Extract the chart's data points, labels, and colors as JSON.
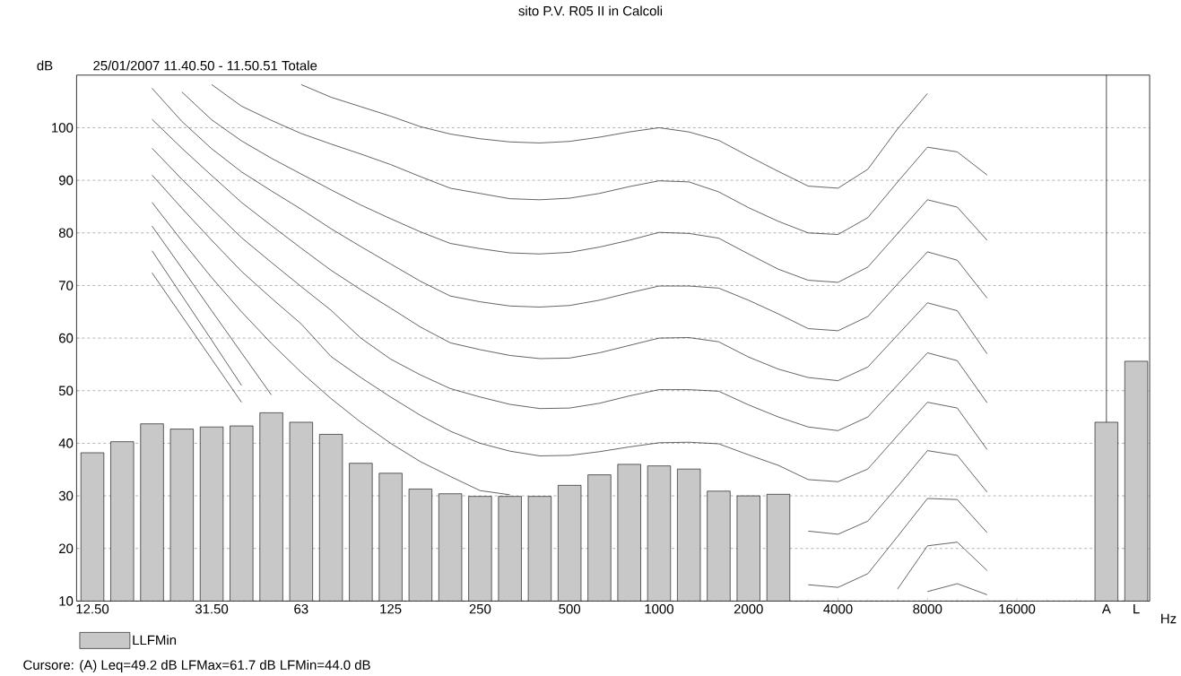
{
  "chart_data": {
    "type": "bar",
    "title": "sito P.V. R05 II in Calcoli",
    "subtitle": "25/01/2007 11.40.50 - 11.50.51  Totale",
    "ylabel": "dB",
    "xlabel": "Hz",
    "annotations": [
      "Cursore: (A)  Leq=49.2 dB  LFMax=61.7 dB  LFMin=44.0 dB"
    ],
    "categories": [
      "12.50",
      null,
      null,
      null,
      "31.50",
      null,
      null,
      "63",
      null,
      null,
      "125",
      null,
      null,
      "250",
      null,
      null,
      "500",
      null,
      null,
      "1000",
      null,
      null,
      "2000",
      null,
      null,
      "4000",
      null,
      null,
      "8000",
      null,
      null,
      "16000",
      null,
      null,
      "A",
      "L"
    ],
    "ylim": [
      10,
      110
    ],
    "yticks": [
      10,
      20,
      30,
      40,
      50,
      60,
      70,
      80,
      90,
      100
    ],
    "grid": "y",
    "legend": "bottom left",
    "marker": "none",
    "ref_lines": [
      {
        "axis": "x",
        "value": "A",
        "color": "#000000"
      }
    ],
    "series": [
      {
        "name": "LLFMin",
        "color": "#c8c8c8",
        "values": [
          38.2,
          40.3,
          43.7,
          42.7,
          43.1,
          43.3,
          45.8,
          44.0,
          41.7,
          36.2,
          34.3,
          31.3,
          30.4,
          29.9,
          29.9,
          29.9,
          32.0,
          34.0,
          36.0,
          35.7,
          35.1,
          30.9,
          30.0,
          30.3,
          null,
          null,
          null,
          null,
          null,
          null,
          null,
          null,
          null,
          null,
          44.0,
          55.6
        ]
      },
      {
        "type": "line",
        "color": "#222222",
        "values": [
          null,
          null,
          null,
          null,
          null,
          null,
          null,
          108.2,
          105.8,
          104.0,
          102.2,
          100.2,
          98.8,
          97.9,
          97.3,
          97.1,
          97.4,
          98.2,
          99.2,
          100.0,
          99.2,
          97.6,
          94.6,
          91.7,
          88.9,
          88.5,
          92.1,
          99.8,
          106.5,
          null,
          null,
          null,
          null,
          null,
          null,
          null
        ]
      },
      {
        "type": "line",
        "color": "#222222",
        "values": [
          null,
          null,
          null,
          null,
          108.2,
          104.1,
          101.4,
          98.9,
          96.9,
          95.0,
          93.0,
          90.7,
          88.5,
          87.5,
          86.5,
          86.3,
          86.6,
          87.5,
          88.8,
          89.9,
          89.7,
          87.8,
          84.8,
          82.2,
          80.0,
          79.7,
          82.9,
          89.7,
          96.3,
          95.4,
          91.0,
          null,
          null,
          null,
          null,
          null
        ]
      },
      {
        "type": "line",
        "color": "#222222",
        "values": [
          null,
          null,
          null,
          106.8,
          101.5,
          97.5,
          94.2,
          91.2,
          88.2,
          85.3,
          82.7,
          80.2,
          78.0,
          77.0,
          76.2,
          76.0,
          76.3,
          77.3,
          78.6,
          80.1,
          79.9,
          79.0,
          76.0,
          73.1,
          71.0,
          70.6,
          73.5,
          79.9,
          86.3,
          84.9,
          78.6,
          null,
          null,
          null,
          null,
          null
        ]
      },
      {
        "type": "line",
        "color": "#222222",
        "values": [
          null,
          null,
          107.5,
          101.2,
          96.0,
          91.6,
          88.0,
          84.5,
          80.8,
          77.4,
          74.1,
          70.8,
          68.0,
          66.9,
          66.1,
          65.9,
          66.2,
          67.2,
          68.6,
          69.9,
          69.9,
          69.5,
          67.2,
          64.6,
          61.8,
          61.4,
          64.1,
          70.3,
          76.4,
          74.8,
          67.6,
          null,
          null,
          null,
          null,
          null
        ]
      },
      {
        "type": "line",
        "color": "#222222",
        "values": [
          null,
          null,
          101.6,
          96.1,
          90.9,
          85.8,
          81.4,
          77.1,
          72.9,
          69.2,
          65.7,
          62.1,
          59.1,
          57.8,
          56.7,
          56.1,
          56.2,
          57.2,
          58.6,
          60.0,
          60.1,
          59.3,
          56.4,
          54.1,
          52.5,
          51.9,
          54.5,
          60.6,
          66.7,
          65.2,
          57.0,
          null,
          null,
          null,
          null,
          null
        ]
      },
      {
        "type": "line",
        "color": "#222222",
        "values": [
          null,
          null,
          96.1,
          90.2,
          84.6,
          79.1,
          74.4,
          69.8,
          65.3,
          60.0,
          56.0,
          53.0,
          50.4,
          48.8,
          47.4,
          46.6,
          46.7,
          47.6,
          49.0,
          50.2,
          50.2,
          49.9,
          47.3,
          45.0,
          43.1,
          42.4,
          45.0,
          51.1,
          57.2,
          55.7,
          47.7,
          null,
          null,
          null,
          null,
          null
        ]
      },
      {
        "type": "line",
        "color": "#222222",
        "values": [
          null,
          null,
          91.0,
          84.7,
          78.6,
          72.7,
          67.6,
          62.7,
          56.5,
          52.5,
          48.8,
          45.3,
          42.3,
          40.0,
          38.5,
          37.6,
          37.7,
          38.4,
          39.3,
          40.1,
          40.2,
          39.9,
          37.8,
          35.8,
          33.1,
          32.7,
          35.1,
          41.5,
          47.8,
          46.7,
          38.8,
          null,
          null,
          null,
          null,
          null
        ]
      },
      {
        "type": "line",
        "color": "#222222",
        "values": [
          null,
          null,
          85.8,
          78.5,
          71.5,
          65.0,
          59.0,
          53.5,
          48.5,
          44.0,
          40.0,
          36.5,
          33.7,
          31.0,
          30.2,
          null,
          null,
          null,
          null,
          null,
          null,
          null,
          null,
          null,
          23.3,
          22.7,
          25.2,
          31.8,
          38.6,
          37.7,
          30.7,
          null,
          null,
          null,
          null,
          null
        ]
      },
      {
        "type": "line",
        "color": "#222222",
        "values": [
          null,
          null,
          81.3,
          73.3,
          65.2,
          57.2,
          49.2,
          null,
          null,
          null,
          null,
          null,
          null,
          null,
          null,
          null,
          null,
          null,
          null,
          null,
          null,
          null,
          null,
          null,
          13.1,
          12.6,
          15.2,
          22.3,
          29.5,
          29.3,
          23.0,
          null,
          null,
          null,
          null,
          null
        ]
      },
      {
        "type": "line",
        "color": "#222222",
        "values": [
          null,
          null,
          76.6,
          68.1,
          59.6,
          51.0,
          null,
          null,
          null,
          null,
          null,
          null,
          null,
          null,
          null,
          null,
          null,
          null,
          null,
          null,
          null,
          null,
          null,
          null,
          null,
          null,
          null,
          12.3,
          20.5,
          21.2,
          15.8,
          null,
          null,
          null,
          null,
          null
        ]
      },
      {
        "type": "line",
        "color": "#222222",
        "values": [
          null,
          null,
          72.4,
          64.2,
          56.0,
          47.8,
          null,
          null,
          null,
          null,
          null,
          null,
          null,
          null,
          null,
          null,
          null,
          null,
          null,
          null,
          null,
          null,
          null,
          null,
          null,
          null,
          null,
          null,
          11.8,
          13.3,
          11.2,
          null,
          null,
          null,
          null,
          null
        ]
      }
    ]
  }
}
